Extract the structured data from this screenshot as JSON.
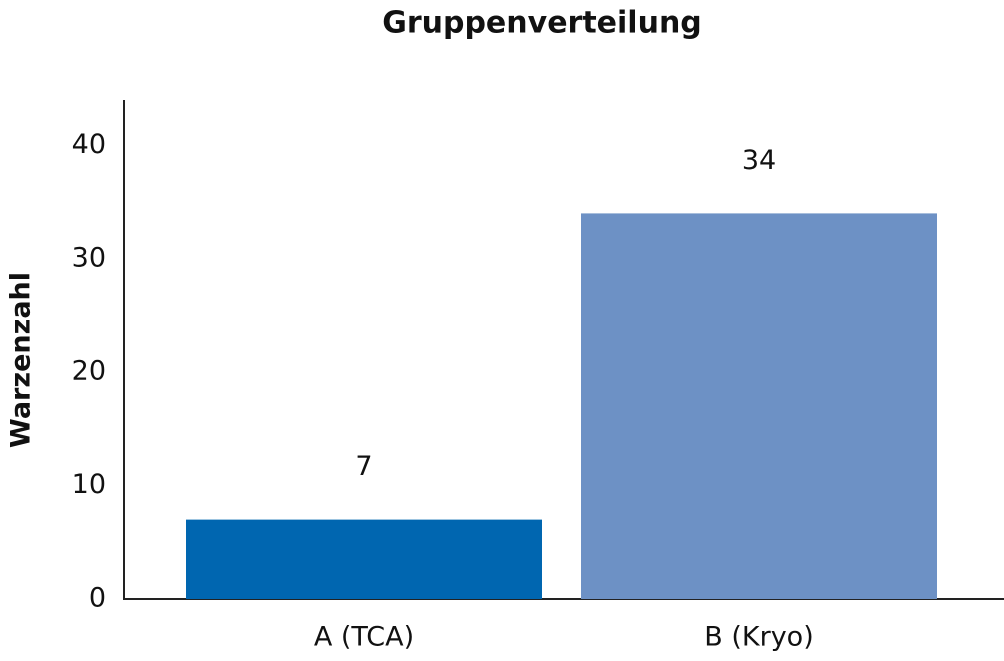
{
  "chart_data": {
    "type": "bar",
    "title": "Gruppenverteilung",
    "y_label": "Warzenzahl",
    "categories": [
      "A (TCA)",
      "B (Kryo)"
    ],
    "values": [
      7,
      34
    ],
    "colors": [
      "#0066b0",
      "#6d91c5"
    ],
    "ylim": [
      0,
      44
    ],
    "yticks": [
      0,
      10,
      20,
      30,
      40
    ],
    "grid": false
  }
}
